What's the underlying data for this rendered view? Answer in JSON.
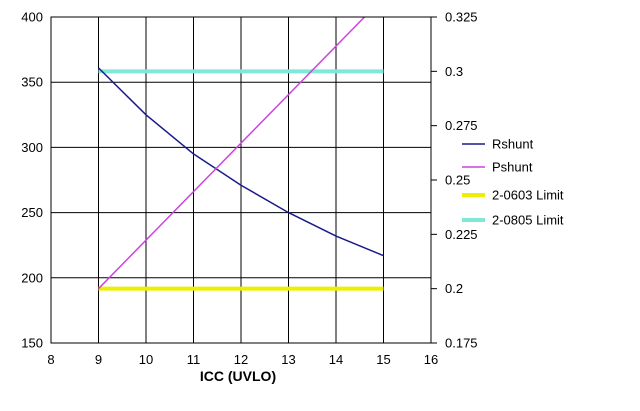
{
  "chart_data": {
    "type": "line",
    "title": "",
    "xlabel": "ICC (UVLO)",
    "ylabel": "",
    "y2label": "",
    "xlim": [
      8,
      16
    ],
    "ylim": [
      150,
      400
    ],
    "y2lim": [
      0.175,
      0.325
    ],
    "xticks": [
      "8",
      "9",
      "10",
      "11",
      "12",
      "13",
      "14",
      "15",
      "16"
    ],
    "yticks": [
      "150",
      "200",
      "250",
      "300",
      "350",
      "400"
    ],
    "y2ticks": [
      "0.175",
      "0.2",
      "0.225",
      "0.25",
      "0.275",
      "0.3",
      "0.325"
    ],
    "grid": true,
    "legend_position": "right",
    "series": [
      {
        "name": "Rshunt",
        "axis": "left",
        "color": "#1a1a8c",
        "x": [
          9,
          10,
          11,
          12,
          13,
          14,
          15
        ],
        "y": [
          361,
          325,
          295,
          271,
          250,
          232,
          217
        ]
      },
      {
        "name": "Pshunt",
        "axis": "right",
        "color": "#cc44dd",
        "x": [
          9,
          14.6
        ],
        "y": [
          0.2,
          0.325
        ]
      },
      {
        "name": "2-0603 Limit",
        "axis": "right",
        "color": "#eeee00",
        "x": [
          9,
          15
        ],
        "y": [
          0.2,
          0.2
        ]
      },
      {
        "name": "2-0805 Limit",
        "axis": "right",
        "color": "#7fe8d8",
        "x": [
          9,
          15
        ],
        "y": [
          0.3,
          0.3
        ]
      }
    ]
  }
}
